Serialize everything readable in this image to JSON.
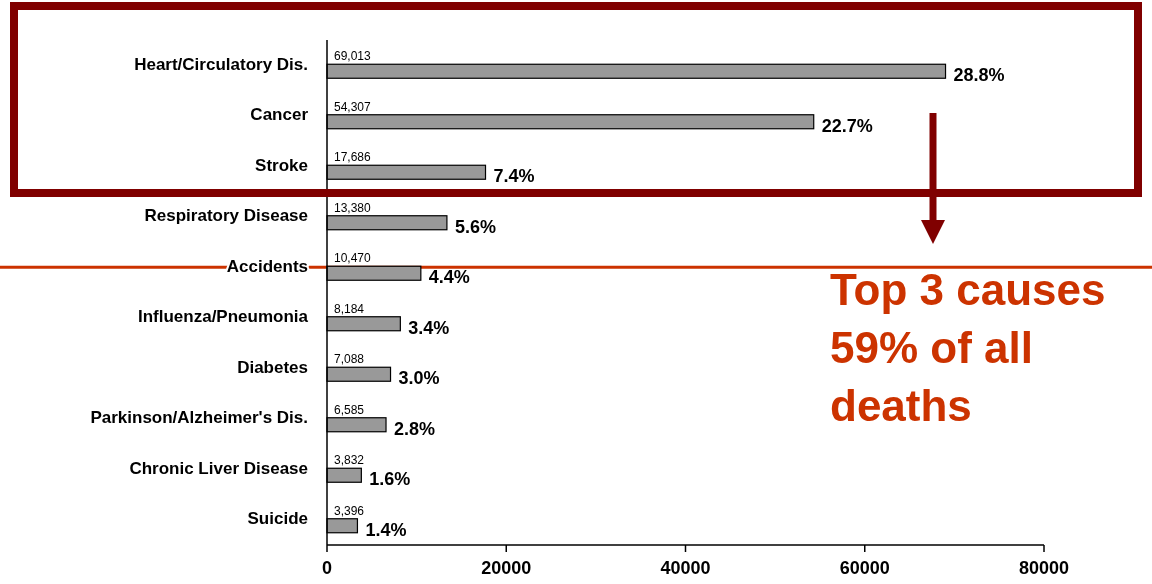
{
  "chart_data": {
    "type": "bar",
    "orientation": "horizontal",
    "categories": [
      "Heart/Circulatory Dis.",
      "Cancer",
      "Stroke",
      "Respiratory Disease",
      "Accidents",
      "Influenza/Pneumonia",
      "Diabetes",
      "Parkinson/Alzheimer's Dis.",
      "Chronic Liver Disease",
      "Suicide"
    ],
    "values": [
      69013,
      54307,
      17686,
      13380,
      10470,
      8184,
      7088,
      6585,
      3832,
      3396
    ],
    "value_labels": [
      "69,013",
      "54,307",
      "17,686",
      "13,380",
      "10,470",
      "8,184",
      "7,088",
      "6,585",
      "3,832",
      "3,396"
    ],
    "color": "#999999",
    "xlim": [
      0,
      80000
    ],
    "xticks": [
      0,
      20000,
      40000,
      60000,
      80000
    ],
    "grid": false,
    "ref_lines": [
      {
        "axis": "y",
        "value": "Accidents",
        "color": "#cc3300"
      }
    ],
    "annotations": [
      {
        "text": "28.8%",
        "x": 69013,
        "y": "Heart/Circulatory Dis."
      },
      {
        "text": "22.7%",
        "x": 54307,
        "y": "Cancer"
      },
      {
        "text": "7.4%",
        "x": 17686,
        "y": "Stroke"
      },
      {
        "text": "5.6%",
        "x": 13380,
        "y": "Respiratory Disease"
      },
      {
        "text": "4.4%",
        "x": 10470,
        "y": "Accidents"
      },
      {
        "text": "3.4%",
        "x": 8184,
        "y": "Influenza/Pneumonia"
      },
      {
        "text": "3.0%",
        "x": 7088,
        "y": "Diabetes"
      },
      {
        "text": "2.8%",
        "x": 6585,
        "y": "Parkinson/Alzheimer's Dis."
      },
      {
        "text": "1.6%",
        "x": 3832,
        "y": "Chronic Liver Disease"
      },
      {
        "text": "1.4%",
        "x": 3396,
        "y": "Suicide"
      },
      "Top 3 causes 59% of all deaths"
    ]
  }
}
